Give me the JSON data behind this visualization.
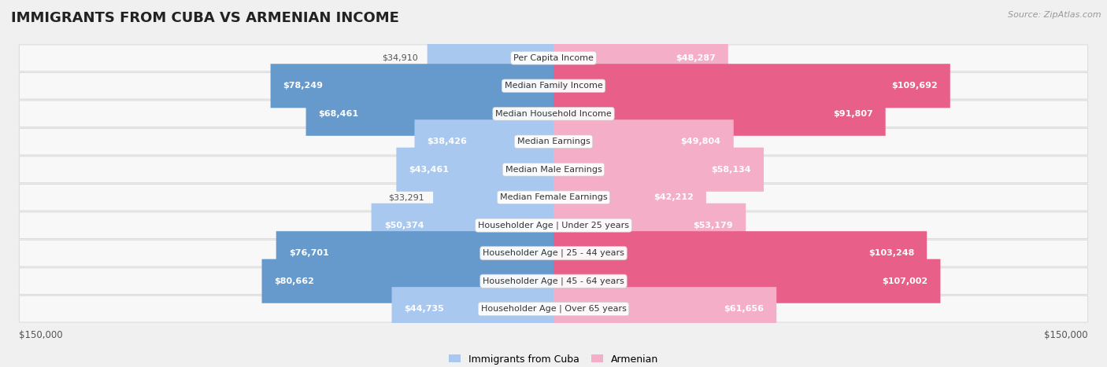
{
  "title": "IMMIGRANTS FROM CUBA VS ARMENIAN INCOME",
  "source": "Source: ZipAtlas.com",
  "categories": [
    "Per Capita Income",
    "Median Family Income",
    "Median Household Income",
    "Median Earnings",
    "Median Male Earnings",
    "Median Female Earnings",
    "Householder Age | Under 25 years",
    "Householder Age | 25 - 44 years",
    "Householder Age | 45 - 64 years",
    "Householder Age | Over 65 years"
  ],
  "cuba_values": [
    34910,
    78249,
    68461,
    38426,
    43461,
    33291,
    50374,
    76701,
    80662,
    44735
  ],
  "armenian_values": [
    48287,
    109692,
    91807,
    49804,
    58134,
    42212,
    53179,
    103248,
    107002,
    61656
  ],
  "cuba_labels": [
    "$34,910",
    "$78,249",
    "$68,461",
    "$38,426",
    "$43,461",
    "$33,291",
    "$50,374",
    "$76,701",
    "$80,662",
    "$44,735"
  ],
  "armenian_labels": [
    "$48,287",
    "$109,692",
    "$91,807",
    "$49,804",
    "$58,134",
    "$42,212",
    "$53,179",
    "$103,248",
    "$107,002",
    "$61,656"
  ],
  "cuba_color_light": "#a8c8f0",
  "cuba_color_dark": "#6699cc",
  "armenian_color_light": "#f4aec8",
  "armenian_color_dark": "#e8608a",
  "max_value": 150000,
  "background_color": "#f0f0f0",
  "row_bg_color": "#f8f8f8",
  "row_border_color": "#dddddd",
  "title_fontsize": 13,
  "axis_label": "$150,000",
  "legend_cuba": "Immigrants from Cuba",
  "legend_armenian": "Armenian",
  "cuba_inside_threshold": 35000,
  "armenian_inside_threshold": 35000
}
